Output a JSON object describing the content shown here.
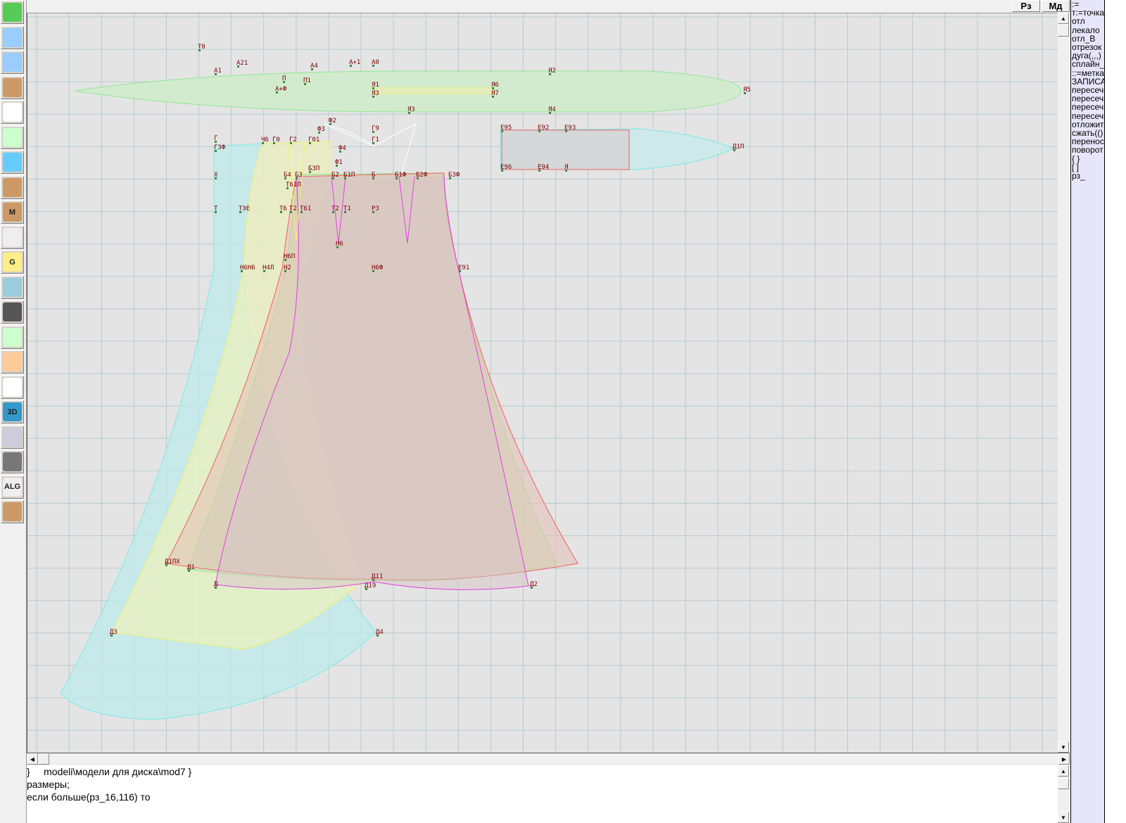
{
  "toolbar": {
    "items": [
      {
        "name": "undo-icon",
        "text": ""
      },
      {
        "name": "zoom-in-icon",
        "text": ""
      },
      {
        "name": "zoom-out-icon",
        "text": ""
      },
      {
        "name": "zoom-pattern-icon",
        "text": ""
      },
      {
        "name": "grid-icon",
        "text": ""
      },
      {
        "name": "line-segment-icon",
        "text": ""
      },
      {
        "name": "map-icon",
        "text": ""
      },
      {
        "name": "pattern-green-icon",
        "text": ""
      },
      {
        "name": "pattern-m-icon",
        "text": "M"
      },
      {
        "name": "compass-icon",
        "text": ""
      },
      {
        "name": "graph-g-icon",
        "text": "G"
      },
      {
        "name": "ruler-icon",
        "text": ""
      },
      {
        "name": "camera-icon",
        "text": ""
      },
      {
        "name": "spreadsheet-icon",
        "text": ""
      },
      {
        "name": "avatar-photo-icon",
        "text": ""
      },
      {
        "name": "jacket-icon",
        "text": ""
      },
      {
        "name": "3d-icon",
        "text": "3D"
      },
      {
        "name": "text-list-icon",
        "text": ""
      },
      {
        "name": "books-icon",
        "text": ""
      },
      {
        "name": "algorithm-icon",
        "text": "ALG"
      },
      {
        "name": "exit-icon",
        "text": ""
      }
    ]
  },
  "topbar": {
    "sizes_button": "Рз",
    "models_button": "Мд"
  },
  "right_panel": {
    "items": [
      ":=",
      "т:=точка",
      "отл",
      "лекало",
      "отл_В",
      "отрезок",
      "дуга(,,,)",
      "сплайн_",
      "::=метка",
      "ЗАПИСАТЬ",
      "пересечь",
      "пересечь",
      "пересечь",
      "пересечь",
      "отложить",
      "сжать(()",
      "перенос",
      "поворот",
      "{ }",
      "[ ]",
      "рз_"
    ]
  },
  "console": {
    "lines": [
      "}     modeli\\модели для диска\\mod7 }",
      "размеры;",
      "если больше(рз_16,116) то"
    ]
  },
  "canvas": {
    "colors": {
      "background": "#e4e4e4",
      "grid": "#b8cccc",
      "green": "#90e890",
      "cyan": "#80e8e8",
      "yellow": "#f0f070",
      "red": "#f06060",
      "magenta": "#e040e0",
      "label": "#7a0000"
    },
    "point_labels": [
      "T0",
      "A21",
      "A1",
      "A4",
      "A+1",
      "A0",
      "П",
      "П1",
      "A+Ф",
      "Я1",
      "Я3",
      "Я6",
      "Я7",
      "Я2",
      "Я5",
      "Я3",
      "Я4",
      "Ф2",
      "Ф3",
      "Г9",
      "Г1",
      "Г",
      "Г3Ф",
      "Ч6",
      "Г0",
      "Г2",
      "Г01",
      "Ф4",
      "Б3П",
      "Ф1",
      "Б4",
      "Б3",
      "Б2",
      "Б1П",
      "Б",
      "Б1Ф",
      "Б2Ф",
      "Б3Ф",
      "Х",
      "Т",
      "ТЭЕ",
      "Т6",
      "Т2",
      "Т61",
      "Т61П",
      "Т2",
      "Т1",
      "Р3",
      "Н6",
      "Н4Л",
      "Н6Н6",
      "Н6П",
      "Н2",
      "Н6Ф",
      "Е91",
      "Е95",
      "Е92",
      "Е93",
      "Е96",
      "Е94",
      "Я",
      "Д1П",
      "Д1ПХ",
      "Д1",
      "Д",
      "Д11",
      "Д19",
      "Д2",
      "Д3",
      "Д4"
    ]
  }
}
